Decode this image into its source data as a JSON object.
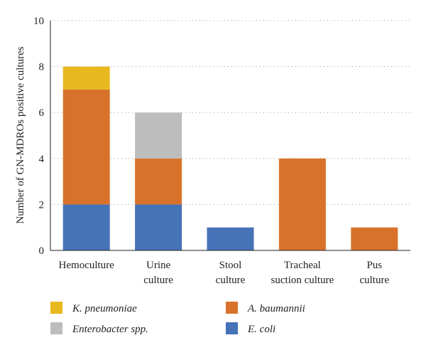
{
  "chart_data": {
    "type": "bar",
    "stacked": true,
    "title": "",
    "xlabel": "",
    "ylabel": "Number of GN-MDROs positive cultures",
    "ylim": [
      0,
      10
    ],
    "yticks": [
      0,
      2,
      4,
      6,
      8,
      10
    ],
    "grid": "horizontal-dotted",
    "legend_position": "bottom",
    "categories": [
      [
        "Hemoculture"
      ],
      [
        "Urine",
        "culture"
      ],
      [
        "Stool",
        "culture"
      ],
      [
        "Tracheal",
        "suction culture"
      ],
      [
        "Pus",
        "culture"
      ]
    ],
    "series": [
      {
        "name": "E. coli",
        "color": "#4672b8",
        "values": [
          2,
          2,
          1,
          0,
          0
        ]
      },
      {
        "name": "A. baumannii",
        "color": "#d8722a",
        "values": [
          5,
          2,
          0,
          4,
          1
        ]
      },
      {
        "name": "Enterobacter spp.",
        "color": "#bdbdbd",
        "values": [
          0,
          2,
          0,
          0,
          0
        ]
      },
      {
        "name": "K. pneumoniae",
        "color": "#e8b81f",
        "values": [
          1,
          0,
          0,
          0,
          0
        ]
      }
    ],
    "legend_order": [
      "K. pneumoniae",
      "A. baumannii",
      "Enterobacter spp.",
      "E. coli"
    ]
  }
}
